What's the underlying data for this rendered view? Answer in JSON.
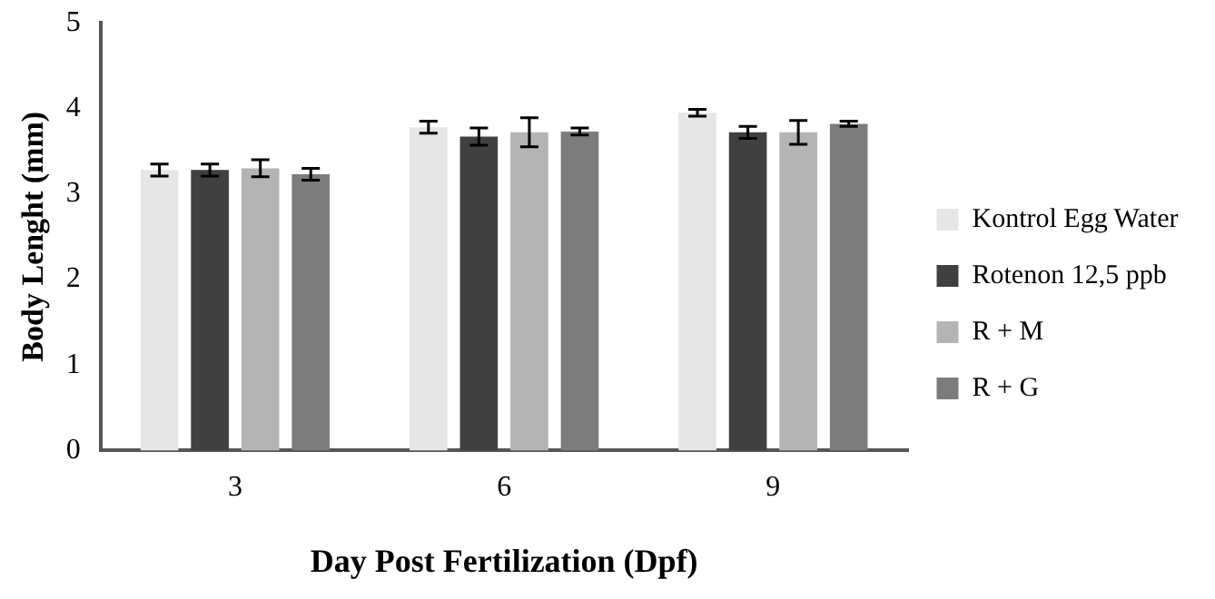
{
  "chart_data": {
    "type": "bar",
    "xlabel": "Day Post Fertilization (Dpf)",
    "ylabel": "Body Lenght (mm)",
    "categories": [
      "3",
      "6",
      "9"
    ],
    "series": [
      {
        "name": "Kontrol Egg Water",
        "color": "#e6e6e6",
        "values": [
          3.28,
          3.78,
          3.95
        ],
        "errors": [
          0.07,
          0.07,
          0.04
        ]
      },
      {
        "name": "Rotenon 12,5 ppb",
        "color": "#404040",
        "values": [
          3.28,
          3.67,
          3.72
        ],
        "errors": [
          0.07,
          0.1,
          0.07
        ]
      },
      {
        "name": "R + M",
        "color": "#b4b4b4",
        "values": [
          3.3,
          3.72,
          3.72
        ],
        "errors": [
          0.1,
          0.17,
          0.14
        ]
      },
      {
        "name": "R + G",
        "color": "#7c7c7c",
        "values": [
          3.23,
          3.73,
          3.82
        ],
        "errors": [
          0.07,
          0.04,
          0.03
        ]
      }
    ],
    "ylim": [
      0,
      5
    ],
    "yticks": [
      0,
      1,
      2,
      3,
      4,
      5
    ],
    "grid": false,
    "legend": "right"
  }
}
